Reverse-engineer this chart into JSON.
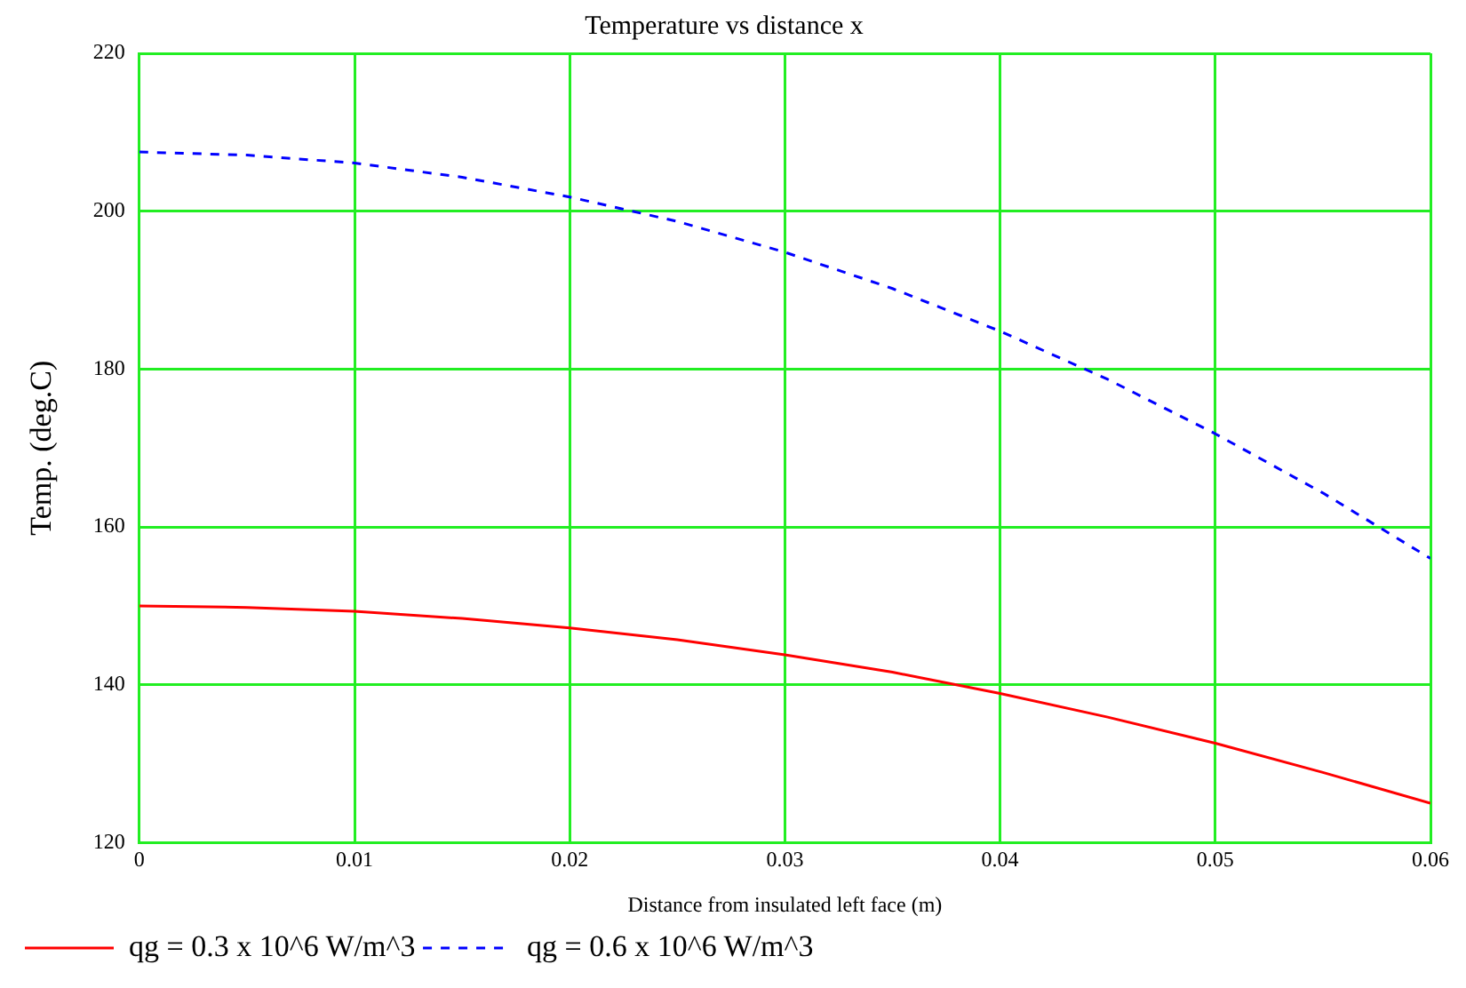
{
  "chart_data": {
    "type": "line",
    "title": "Temperature vs distance x",
    "xlabel": "Distance from insulated left face (m)",
    "ylabel": "Temp. (deg.C)",
    "x": [
      0,
      0.005,
      0.01,
      0.015,
      0.02,
      0.025,
      0.03,
      0.035,
      0.04,
      0.045,
      0.05,
      0.055,
      0.06
    ],
    "series": [
      {
        "name": "qg = 0.3 x 10^6 W/m^3",
        "color": "#ff0000",
        "line_style": "solid",
        "values": [
          150,
          149.8,
          149.3,
          148.4,
          147.2,
          145.7,
          143.8,
          141.6,
          138.9,
          135.9,
          132.6,
          128.9,
          125
        ]
      },
      {
        "name": "qg = 0.6 x 10^6 W/m^3",
        "color": "#0000ff",
        "line_style": "dashed",
        "values": [
          207.5,
          207.1,
          206.1,
          204.3,
          201.8,
          198.7,
          194.8,
          190.2,
          184.8,
          178.7,
          171.8,
          164.3,
          156
        ]
      }
    ],
    "xlim": [
      0,
      0.06
    ],
    "xticks": [
      0,
      0.01,
      0.02,
      0.03,
      0.04,
      0.05,
      0.06
    ],
    "ylim": [
      120,
      220
    ],
    "yticks": [
      120,
      140,
      160,
      180,
      200,
      220
    ],
    "grid": true,
    "legend": "bottom left",
    "marker": "none"
  }
}
